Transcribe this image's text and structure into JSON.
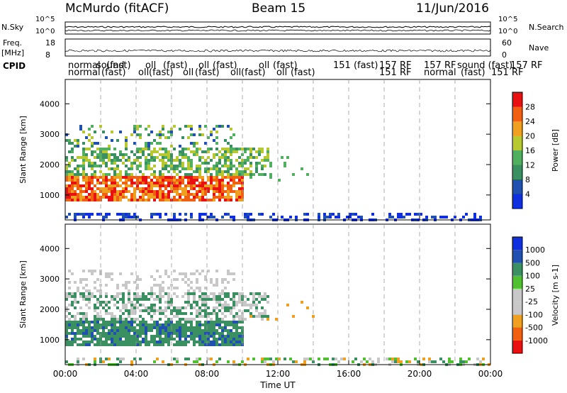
{
  "header": {
    "station": "McMurdo (fitACF)",
    "beam": "Beam 15",
    "date": "11/Jun/2016"
  },
  "strip_labels": {
    "nsky": "N.Sky",
    "nsearch": "N.Search",
    "freq": "Freq.",
    "freq_unit": "[MHz]",
    "nave": "Nave",
    "cpid": "CPID",
    "noise_ticks": [
      "10^5",
      "10^0"
    ],
    "freq_ticks": [
      "18",
      "8"
    ],
    "nave_ticks": [
      "60",
      "0"
    ]
  },
  "cpid_rows": {
    "top": [
      "normal",
      "sound",
      "(fast)",
      "oll",
      "(fast)",
      "oll",
      "(fast)",
      "oll",
      "(fast)",
      "151 (fast)",
      "157 RF",
      "157 RF",
      "sound (fast)",
      "157 RF"
    ],
    "bottom": [
      "normal",
      "(fast)",
      "oll",
      "(fast)",
      "oll",
      "(fast)",
      "oll",
      "(fast)",
      "oll",
      "(fast)",
      "151 RF",
      "normal",
      "(fast)",
      "151 RF"
    ]
  },
  "time_ticks": [
    "00:00",
    "04:00",
    "08:00",
    "12:00",
    "16:00",
    "20:00",
    "00:00"
  ],
  "colors": {
    "power": [
      "#1030e0",
      "#2050b0",
      "#3a9060",
      "#50b060",
      "#b8c830",
      "#f0a020",
      "#f06010",
      "#e81010"
    ],
    "velocity": [
      "#e81010",
      "#f06010",
      "#f0a020",
      "#c8c8c8",
      "#c8c8c8",
      "#50c030",
      "#3a9060",
      "#2050b0",
      "#1030e0"
    ]
  },
  "chart_data": [
    {
      "type": "heatmap",
      "panel": "power",
      "xlabel": "",
      "ylabel": "Slant Range [km]",
      "yticks": [
        1000,
        2000,
        3000,
        4000
      ],
      "ylim": [
        180,
        4800
      ],
      "xlim_hours": [
        0,
        24
      ],
      "colorbar": {
        "label": "Power [dB]",
        "ticks": [
          "4",
          "8",
          "12",
          "16",
          "20",
          "24",
          "28"
        ],
        "range": [
          0,
          30
        ]
      },
      "features": [
        {
          "desc": "strong echo band",
          "t_start": 0.0,
          "t_end": 10.0,
          "range_km": [
            800,
            1700
          ],
          "level_db": 25
        },
        {
          "desc": "mid echo band",
          "t_start": 0.0,
          "t_end": 11.5,
          "range_km": [
            1700,
            2600
          ],
          "level_db": 12
        },
        {
          "desc": "upper scatter",
          "t_start": 0.0,
          "t_end": 9.5,
          "range_km": [
            2600,
            3400
          ],
          "level_db": 11
        },
        {
          "desc": "near-range noise",
          "t_start": 0.0,
          "t_end": 24.0,
          "range_km": [
            200,
            500
          ],
          "level_db": 5
        }
      ]
    },
    {
      "type": "heatmap",
      "panel": "velocity",
      "xlabel": "Time UT",
      "ylabel": "Slant Range [km]",
      "yticks": [
        1000,
        2000,
        3000,
        4000
      ],
      "ylim": [
        180,
        4800
      ],
      "xlim_hours": [
        0,
        24
      ],
      "colorbar": {
        "label": "Velocity [m s-1]",
        "ticks": [
          "1000",
          "500",
          "100",
          "25",
          "-25",
          "-100",
          "-500",
          "-1000"
        ]
      },
      "features": [
        {
          "desc": "main echo band",
          "t_start": 0.0,
          "t_end": 10.0,
          "range_km": [
            800,
            1700
          ],
          "velocity_ms": 150
        },
        {
          "desc": "ground scatter",
          "t_start": 0.0,
          "t_end": 9.5,
          "range_km": [
            2000,
            3400
          ],
          "velocity_ms": 0
        },
        {
          "desc": "near-range noise",
          "t_start": 0.0,
          "t_end": 24.0,
          "range_km": [
            200,
            500
          ],
          "velocity_ms": -100
        }
      ]
    }
  ]
}
